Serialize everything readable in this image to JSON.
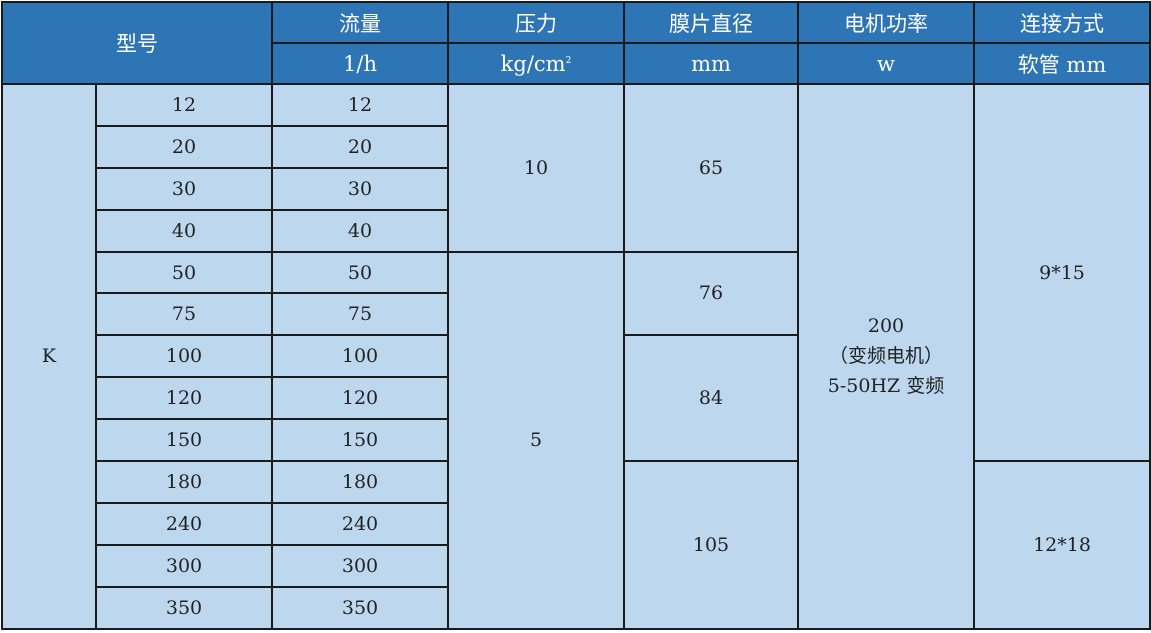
{
  "header": {
    "model": "型号",
    "flow": "流量",
    "flow_unit": "1/h",
    "pressure": "压力",
    "pressure_unit": "kg/cm",
    "pressure_unit_sup": "2",
    "diaphragm": "膜片直径",
    "diaphragm_unit": "mm",
    "motor": "电机功率",
    "motor_unit": "w",
    "connection": "连接方式",
    "connection_unit": "软管 mm"
  },
  "series": "K",
  "rows": [
    {
      "model": "12",
      "flow": "12"
    },
    {
      "model": "20",
      "flow": "20"
    },
    {
      "model": "30",
      "flow": "30"
    },
    {
      "model": "40",
      "flow": "40"
    },
    {
      "model": "50",
      "flow": "50"
    },
    {
      "model": "75",
      "flow": "75"
    },
    {
      "model": "100",
      "flow": "100"
    },
    {
      "model": "120",
      "flow": "120"
    },
    {
      "model": "150",
      "flow": "150"
    },
    {
      "model": "180",
      "flow": "180"
    },
    {
      "model": "240",
      "flow": "240"
    },
    {
      "model": "300",
      "flow": "300"
    },
    {
      "model": "350",
      "flow": "350"
    }
  ],
  "pressure_groups": [
    {
      "value": "10",
      "span": 4
    },
    {
      "value": "5",
      "span": 9
    }
  ],
  "diaphragm_groups": [
    {
      "value": "65",
      "span": 4
    },
    {
      "value": "76",
      "span": 2
    },
    {
      "value": "84",
      "span": 3
    },
    {
      "value": "105",
      "span": 4
    }
  ],
  "motor": {
    "line1": "200",
    "line2": "（变频电机）",
    "line3": "5-50HZ 变频"
  },
  "connection_groups": [
    {
      "value": "9*15",
      "span": 9
    },
    {
      "value": "12*18",
      "span": 4
    }
  ],
  "colors": {
    "header_bg": "#2e75b6",
    "body_bg": "#bdd7ee",
    "border": "#1a1a1a"
  }
}
